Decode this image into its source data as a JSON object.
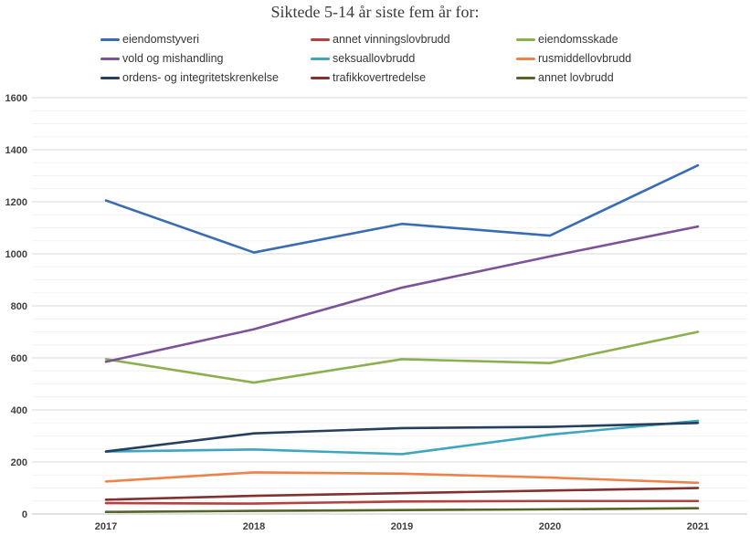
{
  "chart_data": {
    "type": "line",
    "title": "Siktede 5-14 år siste fem år for:",
    "categories": [
      "2017",
      "2018",
      "2019",
      "2020",
      "2021"
    ],
    "series": [
      {
        "name": "eiendomstyveri",
        "color": "#3A6CB4",
        "values": [
          1205,
          1005,
          1115,
          1070,
          1340
        ]
      },
      {
        "name": "annet vinningslovbrudd",
        "color": "#B2423F",
        "values": [
          42,
          40,
          48,
          50,
          50
        ]
      },
      {
        "name": "eiendomsskade",
        "color": "#8CB04F",
        "values": [
          595,
          505,
          595,
          580,
          700
        ]
      },
      {
        "name": "vold og mishandling",
        "color": "#7C5298",
        "values": [
          585,
          710,
          870,
          990,
          1105
        ]
      },
      {
        "name": "seksuallovbrudd",
        "color": "#3EA6C0",
        "values": [
          240,
          248,
          230,
          305,
          358
        ]
      },
      {
        "name": "rusmiddellovbrudd",
        "color": "#EF8248",
        "values": [
          125,
          160,
          155,
          140,
          120
        ]
      },
      {
        "name": "ordens- og integritetskrenkelse",
        "color": "#253F5F",
        "values": [
          240,
          310,
          330,
          335,
          350
        ]
      },
      {
        "name": "trafikkovertredelse",
        "color": "#813230",
        "values": [
          55,
          70,
          80,
          90,
          100
        ]
      },
      {
        "name": "annet lovbrudd",
        "color": "#546527",
        "values": [
          8,
          12,
          15,
          18,
          22
        ]
      }
    ],
    "ylim": [
      0,
      1600
    ],
    "y_major_interval": 200,
    "y_minor_interval": 50,
    "y_ticks": [
      "0",
      "200",
      "400",
      "600",
      "800",
      "1000",
      "1200",
      "1400",
      "1600"
    ],
    "grid": true,
    "legend_position": "top",
    "colors": {
      "major_gridline": "#dadada",
      "minor_gridline": "#f2f2f2",
      "baseline": "#c6c6c6",
      "tick_text": "#3f3f3f",
      "title_text": "#3b3b3b"
    }
  }
}
